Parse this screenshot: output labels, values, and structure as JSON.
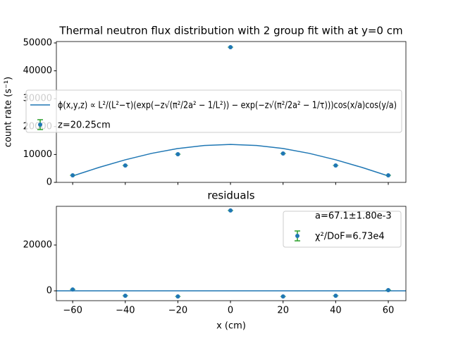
{
  "chart_data": [
    {
      "type": "scatter",
      "title": "Thermal neutron flux distribution with 2 group fit with at y=0 cm",
      "ylabel": "count rate (s⁻¹)",
      "xlim": [
        -66.2,
        66.7
      ],
      "ylim": [
        0,
        50500
      ],
      "xticks": [
        -60,
        -40,
        -20,
        0,
        20,
        40,
        60
      ],
      "show_xticklabels": false,
      "yticks": [
        0,
        10000,
        20000,
        30000,
        40000,
        50000
      ],
      "legend": "center",
      "series": [
        {
          "name": "ϕ(x,y,z) ∝ L²/(L²−τ)(exp(−z√(π²/2a² − 1/L²)) − exp(−z√(π²/2a² − 1/τ)))cos(x/a)cos(y/a)",
          "style": "line",
          "color": "#1f77b4",
          "x": [
            -60,
            -50,
            -40,
            -30,
            -20,
            -10,
            0,
            10,
            20,
            30,
            40,
            50,
            60
          ],
          "values": [
            2310,
            5360,
            8100,
            10400,
            12150,
            13230,
            13600,
            13230,
            12150,
            10400,
            8100,
            5360,
            2310
          ]
        },
        {
          "name": "z=20.25cm",
          "style": "errorbar",
          "color": "#1f77b4",
          "ecolor": "#2ca02c",
          "x": [
            -60,
            -40,
            -20,
            0,
            20,
            40,
            60
          ],
          "values": [
            2525,
            6060,
            10100,
            48480,
            10350,
            6060,
            2525
          ]
        }
      ]
    },
    {
      "type": "scatter",
      "title": "residuals",
      "xlabel": "x (cm)",
      "xlim": [
        -66.2,
        66.7
      ],
      "ylim": [
        -4300,
        36900
      ],
      "xticks": [
        {
          "value": -60,
          "label": "−60"
        },
        {
          "value": -40,
          "label": "−40"
        },
        {
          "value": -20,
          "label": "−20"
        },
        0,
        20,
        40,
        60
      ],
      "show_xticklabels": true,
      "yticks": [
        0,
        20000
      ],
      "legend": "upper right",
      "legend_note": "a=67.1±1.80e-3",
      "hline": 0,
      "hline_color": "#1f77b4",
      "series": [
        {
          "name": "χ²/DoF=6.73e4",
          "style": "errorbar",
          "color": "#1f77b4",
          "ecolor": "#2ca02c",
          "x": [
            -60,
            -40,
            -20,
            0,
            20,
            40,
            60
          ],
          "values": [
            600,
            -2150,
            -2460,
            35080,
            -2460,
            -2150,
            300
          ]
        }
      ]
    }
  ]
}
